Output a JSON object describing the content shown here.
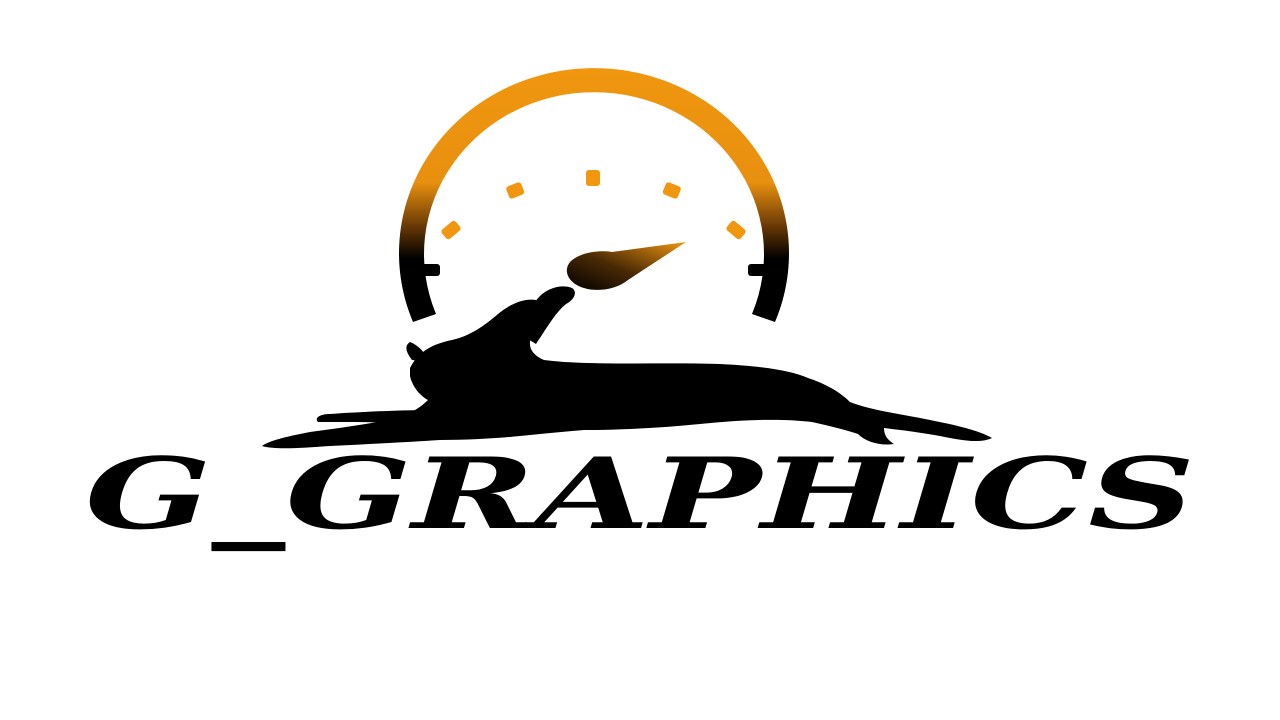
{
  "logo": {
    "wordmark": "G_GRAPHICS",
    "icon": "speedometer-leaping-deer-icon",
    "colors": {
      "background": "#ffffff",
      "ink": "#000000",
      "gauge_top": "#f0960f",
      "gauge_bottom": "#000000",
      "needle_tip": "#e88a10"
    }
  }
}
